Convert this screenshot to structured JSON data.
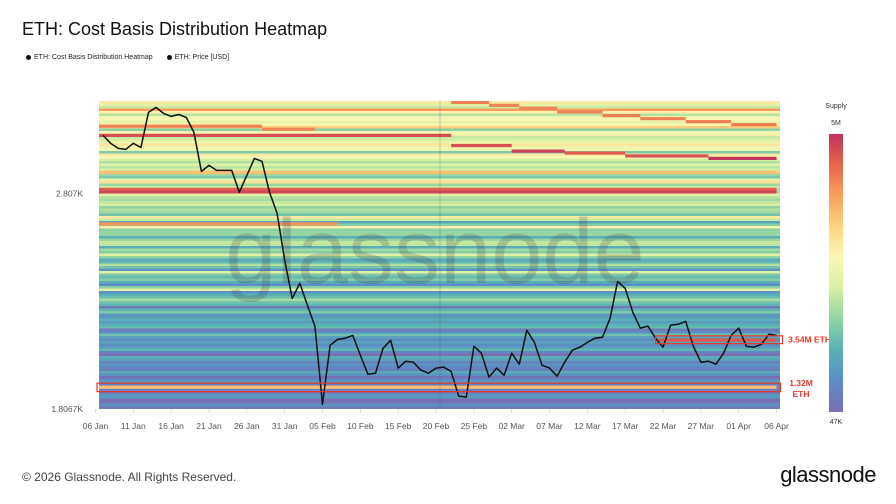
{
  "title": "ETH: Cost Basis Distribution Heatmap",
  "legend": [
    {
      "label": "ETH: Cost Basis Distribution Heatmap",
      "color": "#111111"
    },
    {
      "label": "ETH: Price [USD]",
      "color": "#111111"
    }
  ],
  "watermark": "glassnode",
  "footer": "© 2026 Glassnode. All Rights Reserved.",
  "logo": "glassnode",
  "chart_data": {
    "type": "heatmap",
    "title": "ETH: Cost Basis Distribution Heatmap",
    "yscale": "log",
    "ylim": [
      1806.7,
      3390
    ],
    "y_ticks": [
      {
        "value": 2807,
        "label": "2.807K"
      },
      {
        "value": 1806.7,
        "label": "1.8067K"
      }
    ],
    "x_ticks": [
      "06 Jan",
      "11 Jan",
      "16 Jan",
      "21 Jan",
      "26 Jan",
      "31 Jan",
      "05 Feb",
      "10 Feb",
      "15 Feb",
      "20 Feb",
      "25 Feb",
      "02 Mar",
      "07 Mar",
      "12 Mar",
      "17 Mar",
      "22 Mar",
      "27 Mar",
      "01 Apr",
      "06 Apr"
    ],
    "x_tick_dates": [
      "2026-01-06",
      "2026-01-11",
      "2026-01-16",
      "2026-01-21",
      "2026-01-26",
      "2026-01-31",
      "2026-02-05",
      "2026-02-10",
      "2026-02-15",
      "2026-02-20",
      "2026-02-25",
      "2026-03-02",
      "2026-03-07",
      "2026-03-12",
      "2026-03-17",
      "2026-03-22",
      "2026-03-27",
      "2026-04-01",
      "2026-04-06"
    ],
    "xlim": [
      "2026-01-06",
      "2026-04-06"
    ],
    "colorbar": {
      "title": "Supply",
      "max_label": "5M",
      "min_label": "47K",
      "min": 47000,
      "max": 5000000,
      "colors": [
        "#7a6fb3",
        "#5b8cc6",
        "#58b2b4",
        "#8ed3a3",
        "#d7efa0",
        "#fbf7b5",
        "#fdd380",
        "#f8a15f",
        "#e8664b",
        "#c0325d"
      ]
    },
    "bands": [
      {
        "price": 3160,
        "from": "2026-01-06",
        "to": "2026-02-22",
        "supply": 3800000
      },
      {
        "price": 3095,
        "from": "2026-02-22",
        "to": "2026-03-02",
        "supply": 3700000
      },
      {
        "price": 3060,
        "from": "2026-03-02",
        "to": "2026-03-09",
        "supply": 4300000
      },
      {
        "price": 3048,
        "from": "2026-03-09",
        "to": "2026-03-17",
        "supply": 3300000
      },
      {
        "price": 3030,
        "from": "2026-03-17",
        "to": "2026-03-28",
        "supply": 3600000
      },
      {
        "price": 3015,
        "from": "2026-03-28",
        "to": "2026-04-06",
        "supply": 5000000
      },
      {
        "price": 3220,
        "from": "2026-01-06",
        "to": "2026-01-28",
        "supply": 2300000
      },
      {
        "price": 3200,
        "from": "2026-01-28",
        "to": "2026-02-04",
        "supply": 2200000
      },
      {
        "price": 3380,
        "from": "2026-02-22",
        "to": "2026-02-27",
        "supply": 2400000
      },
      {
        "price": 3360,
        "from": "2026-02-27",
        "to": "2026-03-03",
        "supply": 2300000
      },
      {
        "price": 3340,
        "from": "2026-03-03",
        "to": "2026-03-08",
        "supply": 2300000
      },
      {
        "price": 3315,
        "from": "2026-03-08",
        "to": "2026-03-14",
        "supply": 2300000
      },
      {
        "price": 3290,
        "from": "2026-03-14",
        "to": "2026-03-19",
        "supply": 2400000
      },
      {
        "price": 3270,
        "from": "2026-03-19",
        "to": "2026-03-25",
        "supply": 2300000
      },
      {
        "price": 3250,
        "from": "2026-03-25",
        "to": "2026-03-31",
        "supply": 2400000
      },
      {
        "price": 3230,
        "from": "2026-03-31",
        "to": "2026-04-06",
        "supply": 2500000
      },
      {
        "price": 2930,
        "from": "2026-01-06",
        "to": "2026-04-06",
        "supply": 1300000
      },
      {
        "price": 2830,
        "from": "2026-01-06",
        "to": "2026-04-06",
        "supply": 3200000
      },
      {
        "price": 2815,
        "from": "2026-01-06",
        "to": "2026-04-06",
        "supply": 4000000
      },
      {
        "price": 2637,
        "from": "2026-01-06",
        "to": "2026-02-07",
        "supply": 2000000
      },
      {
        "price": 2080,
        "from": "2026-03-21",
        "to": "2026-04-06",
        "supply": 3540000
      },
      {
        "price": 1889,
        "from": "2026-01-06",
        "to": "2026-04-06",
        "supply": 1320000
      }
    ],
    "annotations": [
      {
        "label": "3.54M ETH",
        "price_low": 2065,
        "price_high": 2098,
        "from": "2026-03-21",
        "to": "2026-04-06"
      },
      {
        "label": "1.32M",
        "label2": "ETH",
        "price_low": 1872,
        "price_high": 1905,
        "from": "2026-01-06",
        "to": "2026-04-06"
      }
    ],
    "series": [
      {
        "name": "ETH: Price [USD]",
        "color": "#111111",
        "x": [
          "2026-01-07",
          "2026-01-08",
          "2026-01-09",
          "2026-01-10",
          "2026-01-11",
          "2026-01-12",
          "2026-01-13",
          "2026-01-14",
          "2026-01-15",
          "2026-01-16",
          "2026-01-17",
          "2026-01-18",
          "2026-01-19",
          "2026-01-20",
          "2026-01-21",
          "2026-01-22",
          "2026-01-23",
          "2026-01-24",
          "2026-01-25",
          "2026-01-26",
          "2026-01-27",
          "2026-01-28",
          "2026-01-29",
          "2026-01-30",
          "2026-01-31",
          "2026-02-01",
          "2026-02-02",
          "2026-02-03",
          "2026-02-04",
          "2026-02-05",
          "2026-02-06",
          "2026-02-07",
          "2026-02-08",
          "2026-02-09",
          "2026-02-10",
          "2026-02-11",
          "2026-02-12",
          "2026-02-13",
          "2026-02-14",
          "2026-02-15",
          "2026-02-16",
          "2026-02-17",
          "2026-02-18",
          "2026-02-19",
          "2026-02-20",
          "2026-02-21",
          "2026-02-22",
          "2026-02-23",
          "2026-02-24",
          "2026-02-25",
          "2026-02-26",
          "2026-02-27",
          "2026-02-28",
          "2026-03-01",
          "2026-03-02",
          "2026-03-03",
          "2026-03-04",
          "2026-03-05",
          "2026-03-06",
          "2026-03-07",
          "2026-03-08",
          "2026-03-09",
          "2026-03-10",
          "2026-03-11",
          "2026-03-12",
          "2026-03-13",
          "2026-03-14",
          "2026-03-15",
          "2026-03-16",
          "2026-03-17",
          "2026-03-18",
          "2026-03-19",
          "2026-03-20",
          "2026-03-21",
          "2026-03-22",
          "2026-03-23",
          "2026-03-24",
          "2026-03-25",
          "2026-03-26",
          "2026-03-27",
          "2026-03-28",
          "2026-03-29",
          "2026-03-30",
          "2026-03-31",
          "2026-04-01",
          "2026-04-02",
          "2026-04-03",
          "2026-04-04",
          "2026-04-05",
          "2026-04-06"
        ],
        "values": [
          3160,
          3109,
          3077,
          3071,
          3109,
          3083,
          3312,
          3346,
          3305,
          3285,
          3298,
          3278,
          3180,
          2936,
          2972,
          2942,
          2942,
          2942,
          2813,
          2912,
          3015,
          2997,
          2813,
          2695,
          2448,
          2265,
          2336,
          2233,
          2140,
          1824,
          2058,
          2083,
          2088,
          2100,
          2017,
          1940,
          1944,
          2045,
          2079,
          1964,
          1992,
          1988,
          1956,
          1944,
          1964,
          1968,
          1951,
          1855,
          1851,
          2054,
          2025,
          1928,
          1964,
          1936,
          2025,
          1980,
          2122,
          2070,
          1976,
          1964,
          1932,
          1988,
          2037,
          2050,
          2070,
          2088,
          2092,
          2175,
          2345,
          2312,
          2202,
          2131,
          2140,
          2088,
          2050,
          2144,
          2148,
          2161,
          2054,
          1988,
          1992,
          1980,
          2025,
          2100,
          2131,
          2054,
          2050,
          2062,
          2105,
          2100
        ]
      }
    ]
  }
}
